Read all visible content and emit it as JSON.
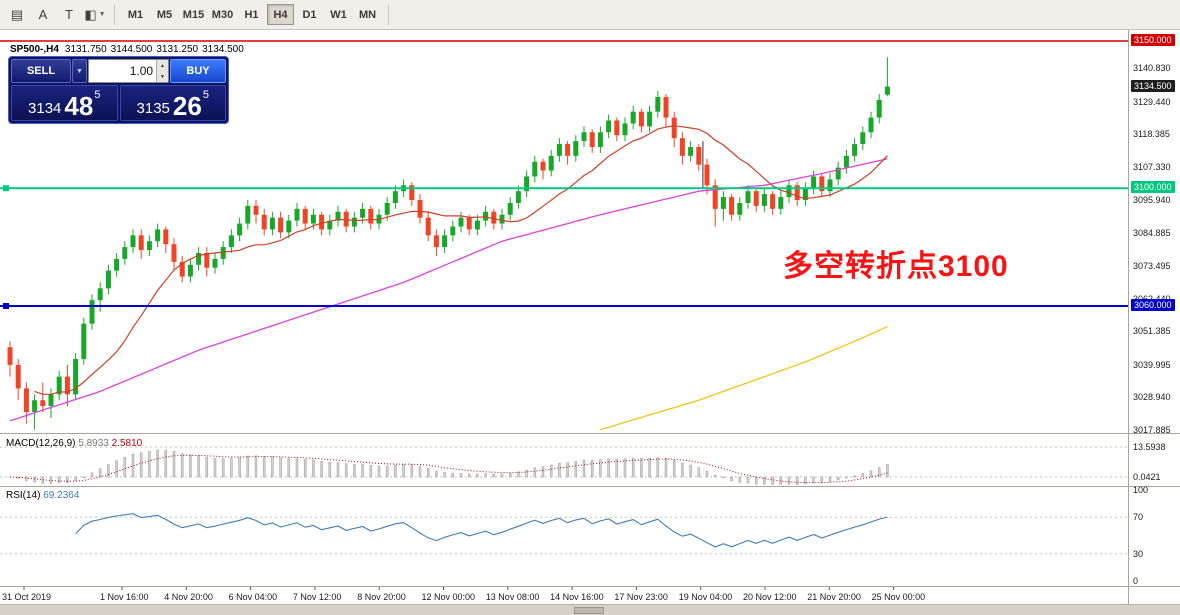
{
  "toolbar": {
    "tools": [
      {
        "name": "charts-grid-icon",
        "glyph": "▤",
        "dropdown": false
      },
      {
        "name": "insert-text-icon",
        "glyph": "A",
        "dropdown": false
      },
      {
        "name": "text-label-icon",
        "glyph": "T",
        "dropdown": false
      },
      {
        "name": "drawing-tools-icon",
        "glyph": "◧",
        "dropdown": true
      }
    ],
    "timeframes": [
      {
        "label": "M1",
        "active": false
      },
      {
        "label": "M5",
        "active": false
      },
      {
        "label": "M15",
        "active": false
      },
      {
        "label": "M30",
        "active": false
      },
      {
        "label": "H1",
        "active": false
      },
      {
        "label": "H4",
        "active": true
      },
      {
        "label": "D1",
        "active": false
      },
      {
        "label": "W1",
        "active": false
      },
      {
        "label": "MN",
        "active": false
      }
    ]
  },
  "glyphs": {
    "dropdown": "▼",
    "up": "▲",
    "down": "▼"
  },
  "chart_header": {
    "symbol_period": "SP500-,H4",
    "open": "3131.750",
    "high": "3144.500",
    "low": "3131.250",
    "close": "3134.500"
  },
  "trade_panel": {
    "sell_label": "SELL",
    "buy_label": "BUY",
    "volume": "1.00",
    "bid": {
      "main": "3134",
      "pips": "48",
      "pip_sub": "5"
    },
    "ask": {
      "main": "3135",
      "pips": "26",
      "pip_sub": "5"
    }
  },
  "annotation": {
    "text": "多空转折点3100",
    "color": "#f81414"
  },
  "indicators": {
    "macd": {
      "name": "MACD(12,26,9)",
      "main": "5.8933",
      "signal": "2.5810",
      "axis_labels": [
        {
          "text": "13.5938",
          "value": 13.5938
        },
        {
          "text": "0.0421",
          "value": 0.0421
        }
      ]
    },
    "rsi": {
      "name": "RSI(14)",
      "value": "69.2364",
      "axis_labels": [
        {
          "text": "100",
          "value": 100
        },
        {
          "text": "70",
          "value": 70
        },
        {
          "text": "30",
          "value": 30
        },
        {
          "text": "0",
          "value": 0
        }
      ],
      "levels": [
        70,
        30
      ]
    }
  },
  "price_axis": {
    "labels": [
      "3140.830",
      "3129.440",
      "3118.385",
      "3107.330",
      "3095.940",
      "3084.885",
      "3073.495",
      "3062.440",
      "3051.385",
      "3039.995",
      "3028.940",
      "3017.885"
    ],
    "badges": [
      {
        "text": "3150.000",
        "price": 3150.0,
        "bg": "#d40000"
      },
      {
        "text": "3134.500",
        "price": 3134.5,
        "bg": "#1e1e1e"
      },
      {
        "text": "3100.000",
        "price": 3100.0,
        "bg": "#00c87e"
      },
      {
        "text": "3060.000",
        "price": 3060.0,
        "bg": "#0000c8"
      }
    ]
  },
  "time_axis": {
    "labels": [
      "31 Oct 2019",
      "1 Nov 16:00",
      "4 Nov 20:00",
      "6 Nov 04:00",
      "7 Nov 12:00",
      "8 Nov 20:00",
      "12 Nov 00:00",
      "13 Nov 08:00",
      "14 Nov 16:00",
      "17 Nov 23:00",
      "19 Nov 04:00",
      "20 Nov 12:00",
      "21 Nov 20:00",
      "25 Nov 00:00"
    ]
  },
  "chart_data": {
    "type": "candlestick",
    "symbol": "SP500-",
    "timeframe": "H4",
    "ylim": [
      3017.885,
      3150.0
    ],
    "current_price": 3134.5,
    "last_ohlc": {
      "open": 3131.75,
      "high": 3144.5,
      "low": 3131.25,
      "close": 3134.5
    },
    "hlines": [
      {
        "price": 3150.0,
        "color": "#d40000",
        "width": 1.4,
        "handle": false
      },
      {
        "price": 3100.0,
        "color": "#00c87e",
        "width": 2,
        "handle": true
      },
      {
        "price": 3060.0,
        "color": "#0000c8",
        "width": 2,
        "handle": true
      }
    ],
    "vline": {
      "bar": 84.5,
      "price_from": 3116,
      "price_to": 3100
    },
    "ma_magenta": [
      [
        0,
        3021
      ],
      [
        11,
        3031
      ],
      [
        23,
        3045
      ],
      [
        36,
        3057
      ],
      [
        48,
        3068
      ],
      [
        60,
        3082
      ],
      [
        72,
        3091
      ],
      [
        84,
        3099
      ],
      [
        92,
        3101
      ],
      [
        99,
        3105
      ],
      [
        107,
        3110
      ]
    ],
    "ma_yellow": [
      [
        72,
        3018
      ],
      [
        78,
        3023
      ],
      [
        84,
        3028
      ],
      [
        90,
        3034
      ],
      [
        97,
        3041
      ],
      [
        103,
        3048
      ],
      [
        107,
        3053
      ]
    ],
    "colors": {
      "bull": "#17a82a",
      "bear": "#f04424",
      "ma_red": "#cc4125",
      "ma_magenta": "#e040e0",
      "ma_yellow": "#f2c31b",
      "rsi_line": "#3f7cb6",
      "macd_signal": "#c00000",
      "macd_hist": "#d2d2d2"
    },
    "candles": [
      [
        3046,
        3048,
        3036,
        3040
      ],
      [
        3040,
        3042,
        3028,
        3032
      ],
      [
        3032,
        3034,
        3020,
        3024
      ],
      [
        3024,
        3030,
        3018,
        3028
      ],
      [
        3028,
        3034,
        3024,
        3026
      ],
      [
        3026,
        3032,
        3022,
        3030
      ],
      [
        3030,
        3038,
        3028,
        3036
      ],
      [
        3036,
        3040,
        3026,
        3030
      ],
      [
        3030,
        3044,
        3028,
        3042
      ],
      [
        3042,
        3056,
        3040,
        3054
      ],
      [
        3054,
        3064,
        3052,
        3062
      ],
      [
        3062,
        3068,
        3058,
        3066
      ],
      [
        3066,
        3074,
        3064,
        3072
      ],
      [
        3072,
        3078,
        3070,
        3076
      ],
      [
        3076,
        3082,
        3074,
        3080
      ],
      [
        3080,
        3086,
        3078,
        3084
      ],
      [
        3084,
        3086,
        3076,
        3079
      ],
      [
        3079,
        3084,
        3077,
        3082
      ],
      [
        3082,
        3088,
        3080,
        3086
      ],
      [
        3086,
        3087,
        3078,
        3081
      ],
      [
        3081,
        3083,
        3072,
        3075
      ],
      [
        3075,
        3077,
        3068,
        3070
      ],
      [
        3070,
        3076,
        3068,
        3074
      ],
      [
        3074,
        3080,
        3072,
        3078
      ],
      [
        3078,
        3080,
        3070,
        3073
      ],
      [
        3073,
        3078,
        3071,
        3076
      ],
      [
        3076,
        3082,
        3074,
        3080
      ],
      [
        3080,
        3086,
        3078,
        3084
      ],
      [
        3084,
        3090,
        3082,
        3088
      ],
      [
        3088,
        3096,
        3086,
        3094
      ],
      [
        3094,
        3096,
        3088,
        3091
      ],
      [
        3091,
        3093,
        3084,
        3086
      ],
      [
        3086,
        3092,
        3084,
        3090
      ],
      [
        3090,
        3092,
        3083,
        3085
      ],
      [
        3085,
        3091,
        3083,
        3089
      ],
      [
        3089,
        3095,
        3087,
        3093
      ],
      [
        3093,
        3094,
        3086,
        3088
      ],
      [
        3088,
        3093,
        3086,
        3091
      ],
      [
        3091,
        3092,
        3084,
        3086
      ],
      [
        3086,
        3091,
        3084,
        3089
      ],
      [
        3089,
        3094,
        3087,
        3092
      ],
      [
        3092,
        3093,
        3085,
        3087
      ],
      [
        3087,
        3092,
        3085,
        3090
      ],
      [
        3090,
        3095,
        3088,
        3093
      ],
      [
        3093,
        3094,
        3086,
        3088
      ],
      [
        3088,
        3093,
        3086,
        3091
      ],
      [
        3091,
        3097,
        3089,
        3095
      ],
      [
        3095,
        3101,
        3093,
        3099
      ],
      [
        3099,
        3103,
        3097,
        3101
      ],
      [
        3101,
        3102,
        3094,
        3096
      ],
      [
        3096,
        3098,
        3088,
        3090
      ],
      [
        3090,
        3092,
        3082,
        3084
      ],
      [
        3084,
        3086,
        3077,
        3080
      ],
      [
        3080,
        3086,
        3078,
        3084
      ],
      [
        3084,
        3089,
        3082,
        3087
      ],
      [
        3087,
        3092,
        3085,
        3090
      ],
      [
        3090,
        3091,
        3084,
        3086
      ],
      [
        3086,
        3091,
        3084,
        3089
      ],
      [
        3089,
        3094,
        3087,
        3092
      ],
      [
        3092,
        3093,
        3086,
        3088
      ],
      [
        3088,
        3093,
        3086,
        3091
      ],
      [
        3091,
        3097,
        3089,
        3095
      ],
      [
        3095,
        3101,
        3093,
        3099
      ],
      [
        3099,
        3106,
        3097,
        3104
      ],
      [
        3104,
        3111,
        3102,
        3109
      ],
      [
        3109,
        3110,
        3103,
        3106
      ],
      [
        3106,
        3113,
        3104,
        3111
      ],
      [
        3111,
        3117,
        3109,
        3115
      ],
      [
        3115,
        3116,
        3108,
        3111
      ],
      [
        3111,
        3118,
        3109,
        3116
      ],
      [
        3116,
        3121,
        3114,
        3119
      ],
      [
        3119,
        3120,
        3112,
        3114
      ],
      [
        3114,
        3121,
        3112,
        3119
      ],
      [
        3119,
        3125,
        3117,
        3123
      ],
      [
        3123,
        3124,
        3116,
        3118
      ],
      [
        3118,
        3124,
        3116,
        3122
      ],
      [
        3122,
        3128,
        3120,
        3126
      ],
      [
        3126,
        3127,
        3119,
        3121
      ],
      [
        3121,
        3128,
        3119,
        3126
      ],
      [
        3126,
        3133,
        3124,
        3131
      ],
      [
        3131,
        3132,
        3121,
        3124
      ],
      [
        3124,
        3126,
        3114,
        3117
      ],
      [
        3117,
        3119,
        3108,
        3111
      ],
      [
        3111,
        3116,
        3109,
        3114
      ],
      [
        3114,
        3115,
        3106,
        3108
      ],
      [
        3108,
        3110,
        3098,
        3101
      ],
      [
        3101,
        3103,
        3087,
        3093
      ],
      [
        3093,
        3099,
        3089,
        3097
      ],
      [
        3097,
        3098,
        3089,
        3091
      ],
      [
        3091,
        3097,
        3089,
        3095
      ],
      [
        3095,
        3101,
        3093,
        3099
      ],
      [
        3099,
        3100,
        3092,
        3094
      ],
      [
        3094,
        3100,
        3092,
        3098
      ],
      [
        3098,
        3099,
        3091,
        3093
      ],
      [
        3093,
        3099,
        3091,
        3097
      ],
      [
        3097,
        3103,
        3095,
        3101
      ],
      [
        3101,
        3102,
        3094,
        3096
      ],
      [
        3096,
        3102,
        3094,
        3100
      ],
      [
        3100,
        3106,
        3098,
        3104
      ],
      [
        3104,
        3105,
        3097,
        3099
      ],
      [
        3099,
        3105,
        3097,
        3103
      ],
      [
        3103,
        3109,
        3101,
        3107
      ],
      [
        3107,
        3113,
        3105,
        3111
      ],
      [
        3111,
        3117,
        3109,
        3115
      ],
      [
        3115,
        3121,
        3113,
        3119
      ],
      [
        3119,
        3126,
        3117,
        3124
      ],
      [
        3124,
        3132,
        3122,
        3130
      ],
      [
        3131.75,
        3144.5,
        3131.25,
        3134.5
      ]
    ]
  }
}
